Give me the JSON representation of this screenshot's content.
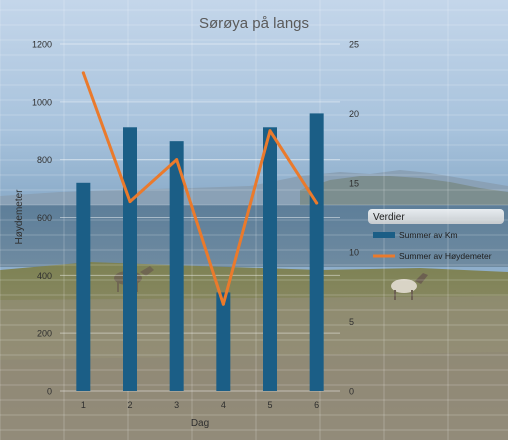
{
  "chart_data": {
    "type": "bar+line",
    "title": "Sørøya på langs",
    "xlabel": "Dag",
    "ylabel": "Høydemeter",
    "categories": [
      "1",
      "2",
      "3",
      "4",
      "5",
      "6"
    ],
    "left_axis": {
      "min": 0,
      "max": 1200,
      "ticks": [
        "0",
        "200",
        "400",
        "600",
        "800",
        "1000",
        "1200"
      ]
    },
    "right_axis": {
      "min": 0,
      "max": 25,
      "ticks": [
        "0",
        "5",
        "10",
        "15",
        "20",
        "25"
      ]
    },
    "series": [
      {
        "name": "Summer av Km",
        "type": "bar",
        "axis": "right",
        "values": [
          15.0,
          19.0,
          18.0,
          7.1,
          19.0,
          20.0
        ]
      },
      {
        "name": "Summer av Høydemeter",
        "type": "line",
        "axis": "left",
        "values": [
          1100,
          655,
          800,
          300,
          900,
          650
        ]
      }
    ],
    "legend": {
      "title": "Verdier",
      "position": "right"
    },
    "grid": true,
    "colors": {
      "bar": "#1b5e86",
      "line": "#ea7a2c",
      "title": "#5a5a5a",
      "tick": "#2f2f2f"
    }
  }
}
